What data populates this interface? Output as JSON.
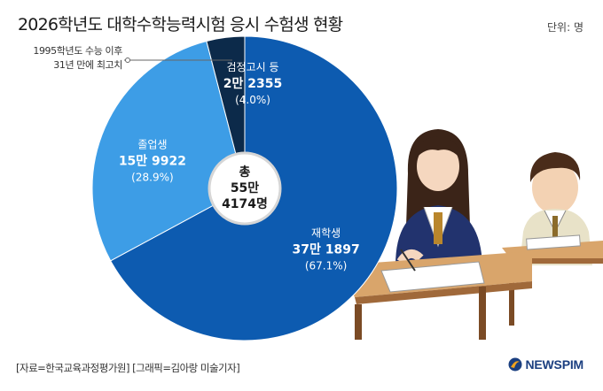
{
  "header": {
    "title": "2026학년도 대학수학능력시험 응시 수험생 현황",
    "unit": "단위: 명"
  },
  "annotation": {
    "line1": "1995학년도 수능 이후",
    "line2": "31년 만에 최고치"
  },
  "chart_data": {
    "type": "pie",
    "slices": [
      {
        "label": "재학생",
        "value_text": "37만 1897",
        "percent_text": "(67.1%)",
        "value": 371897,
        "percent": 67.1,
        "color": "#0d5bb0",
        "label_color": "#ffffff"
      },
      {
        "label": "졸업생",
        "value_text": "15만 9922",
        "percent_text": "(28.9%)",
        "value": 159922,
        "percent": 28.9,
        "color": "#3d9de6",
        "label_color": "#ffffff"
      },
      {
        "label": "검정고시 등",
        "value_text": "2만 2355",
        "percent_text": "(4.0%)",
        "value": 22355,
        "percent": 4.0,
        "color": "#0c2a4a",
        "label_color": "#ffffff"
      }
    ],
    "total": {
      "label": "총",
      "line1": "55만",
      "line2": "4174명",
      "value": 554174
    }
  },
  "footer": {
    "source": "[자료=한국교육과정평가원] [그래픽=김아랑 미술기자]",
    "brand": "NEWSPIM"
  },
  "colors": {
    "brand": "#1b3f80",
    "brand_accent": "#f0a21e"
  }
}
